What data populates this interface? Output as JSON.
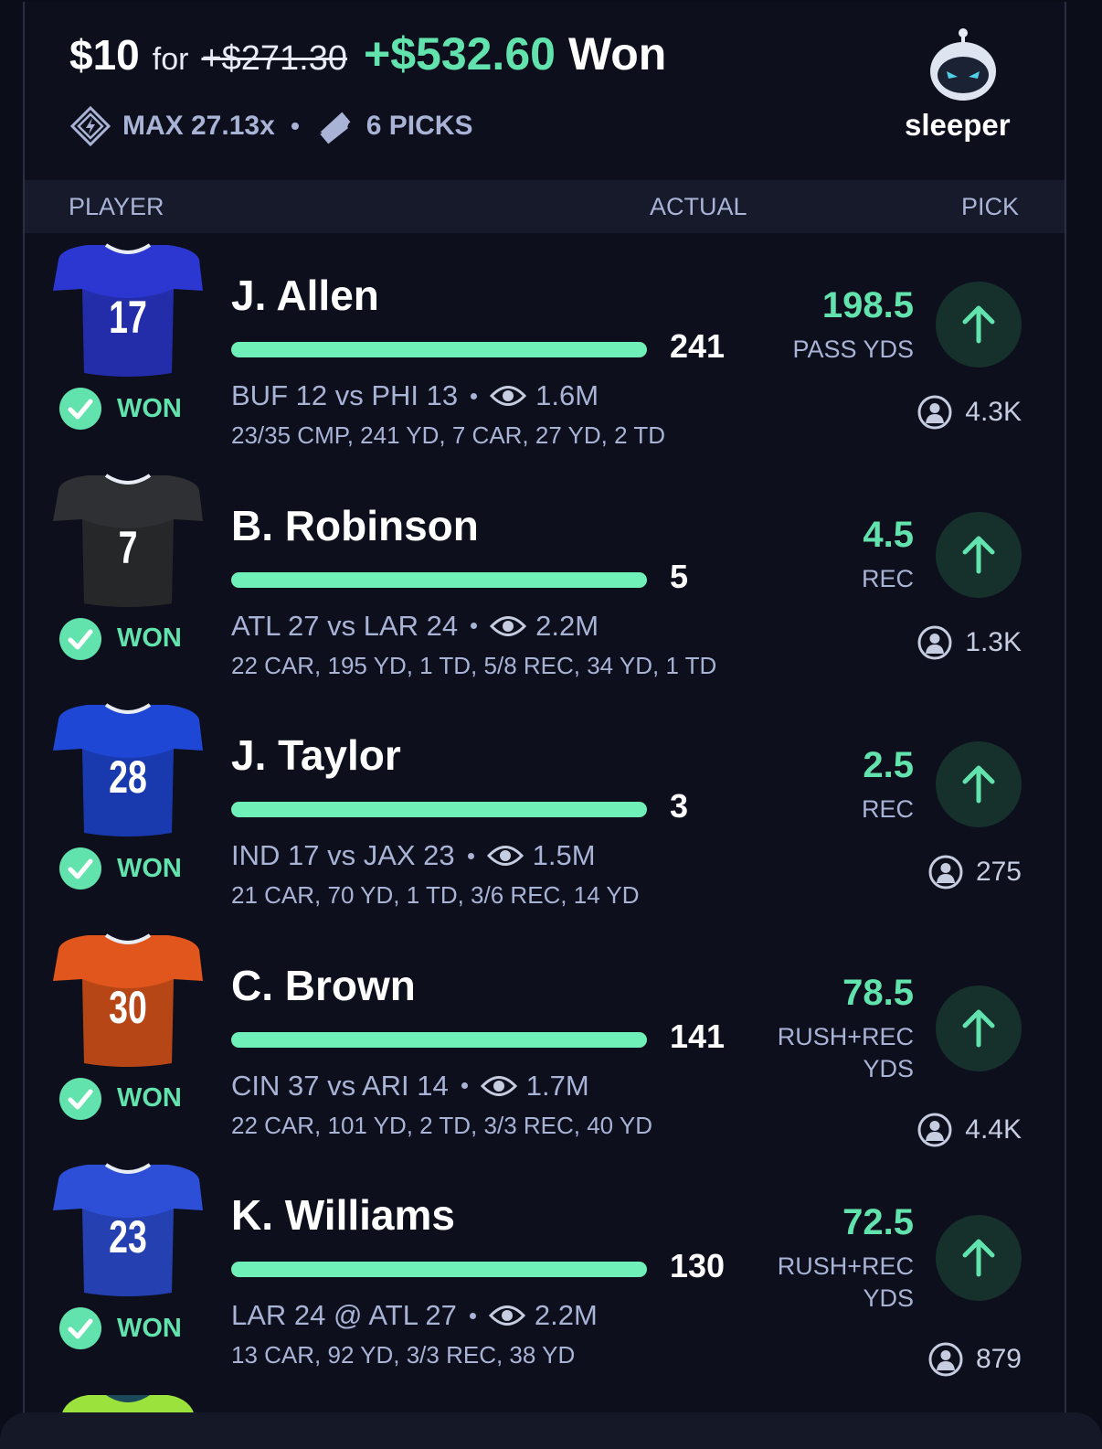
{
  "header": {
    "stake": "$10",
    "for": "for",
    "original": "+$271.30",
    "payout": "+$532.60",
    "result": "Won",
    "max": "MAX 27.13x",
    "picks": "6 PICKS",
    "brand": "sleeper"
  },
  "columns": [
    "PLAYER",
    "ACTUAL",
    "PICK"
  ],
  "rows": [
    {
      "number": "17",
      "color": "#2b37d0",
      "name": "J. Allen",
      "actual": "241",
      "line": "198.5",
      "stat": "PASS YDS",
      "status": "WON",
      "game": "BUF 12 vs PHI 13",
      "views": "1.6M",
      "stats": "23/35 CMP, 241 YD, 7 CAR, 27 YD, 2 TD",
      "pickers": "4.3K"
    },
    {
      "number": "7",
      "color": "#2f3033",
      "name": "B. Robinson",
      "actual": "5",
      "line": "4.5",
      "stat": "REC",
      "status": "WON",
      "game": "ATL 27 vs LAR 24",
      "views": "2.2M",
      "stats": "22 CAR, 195 YD, 1 TD, 5/8 REC, 34 YD, 1 TD",
      "pickers": "1.3K"
    },
    {
      "number": "28",
      "color": "#1f47d6",
      "name": "J. Taylor",
      "actual": "3",
      "line": "2.5",
      "stat": "REC",
      "status": "WON",
      "game": "IND 17 vs JAX 23",
      "views": "1.5M",
      "stats": "21 CAR, 70 YD, 1 TD, 3/6 REC, 14 YD",
      "pickers": "275"
    },
    {
      "number": "30",
      "color": "#e0561c",
      "name": "C. Brown",
      "actual": "141",
      "line": "78.5",
      "stat": "RUSH+REC YDS",
      "status": "WON",
      "game": "CIN 37 vs ARI 14",
      "views": "1.7M",
      "stats": "22 CAR, 101 YD, 2 TD, 3/3 REC, 40 YD",
      "pickers": "4.4K"
    },
    {
      "number": "23",
      "color": "#2d4fd8",
      "name": "K. Williams",
      "actual": "130",
      "line": "72.5",
      "stat": "RUSH+REC YDS",
      "status": "WON",
      "game": "LAR 24 @ ATL 27",
      "views": "2.2M",
      "stats": "13 CAR, 92 YD, 3/3 REC, 38 YD",
      "pickers": "879"
    }
  ]
}
